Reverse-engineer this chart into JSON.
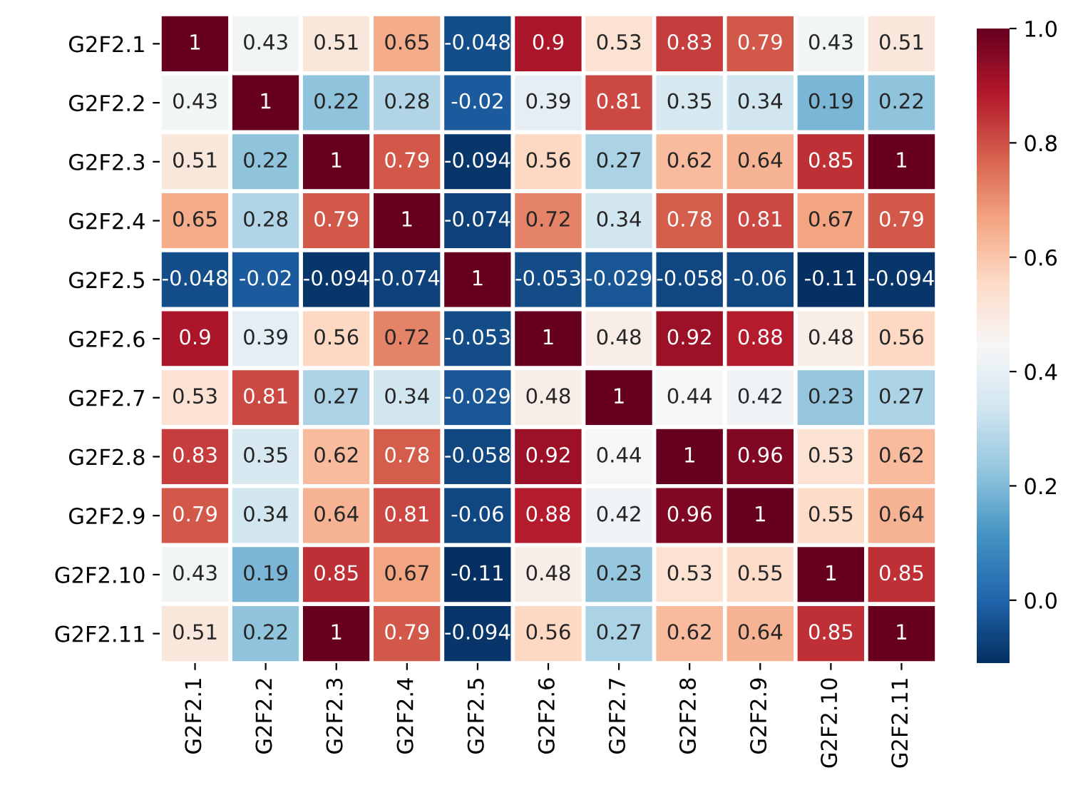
{
  "chart_data": {
    "type": "heatmap",
    "categories": [
      "G2F2.1",
      "G2F2.2",
      "G2F2.3",
      "G2F2.4",
      "G2F2.5",
      "G2F2.6",
      "G2F2.7",
      "G2F2.8",
      "G2F2.9",
      "G2F2.10",
      "G2F2.11"
    ],
    "y_categories": [
      "G2F2.1",
      "G2F2.2",
      "G2F2.3",
      "G2F2.4",
      "G2F2.5",
      "G2F2.6",
      "G2F2.7",
      "G2F2.8",
      "G2F2.9",
      "G2F2.10",
      "G2F2.11"
    ],
    "cells": [
      [
        1,
        0.43,
        0.51,
        0.65,
        -0.048,
        0.9,
        0.53,
        0.83,
        0.79,
        0.43,
        0.51
      ],
      [
        0.43,
        1,
        0.22,
        0.28,
        -0.02,
        0.39,
        0.81,
        0.35,
        0.34,
        0.19,
        0.22
      ],
      [
        0.51,
        0.22,
        1,
        0.79,
        -0.094,
        0.56,
        0.27,
        0.62,
        0.64,
        0.85,
        1
      ],
      [
        0.65,
        0.28,
        0.79,
        1,
        -0.074,
        0.72,
        0.34,
        0.78,
        0.81,
        0.67,
        0.79
      ],
      [
        -0.048,
        -0.02,
        -0.094,
        -0.074,
        1,
        -0.053,
        -0.029,
        -0.058,
        -0.06,
        -0.11,
        -0.094
      ],
      [
        0.9,
        0.39,
        0.56,
        0.72,
        -0.053,
        1,
        0.48,
        0.92,
        0.88,
        0.48,
        0.56
      ],
      [
        0.53,
        0.81,
        0.27,
        0.34,
        -0.029,
        0.48,
        1,
        0.44,
        0.42,
        0.23,
        0.27
      ],
      [
        0.83,
        0.35,
        0.62,
        0.78,
        -0.058,
        0.92,
        0.44,
        1,
        0.96,
        0.53,
        0.62
      ],
      [
        0.79,
        0.34,
        0.64,
        0.81,
        -0.06,
        0.88,
        0.42,
        0.96,
        1,
        0.55,
        0.64
      ],
      [
        0.43,
        0.19,
        0.85,
        0.67,
        -0.11,
        0.48,
        0.23,
        0.53,
        0.55,
        1,
        0.85
      ],
      [
        0.51,
        0.22,
        1,
        0.79,
        -0.094,
        0.56,
        0.27,
        0.62,
        0.64,
        0.85,
        1
      ]
    ],
    "clim": [
      -0.11,
      1.0
    ],
    "cticks": [
      {
        "value": 0,
        "label": "0.0"
      },
      0.2,
      0.4,
      0.6,
      0.8,
      {
        "value": 1,
        "label": "1.0"
      }
    ],
    "data_labels": true
  }
}
